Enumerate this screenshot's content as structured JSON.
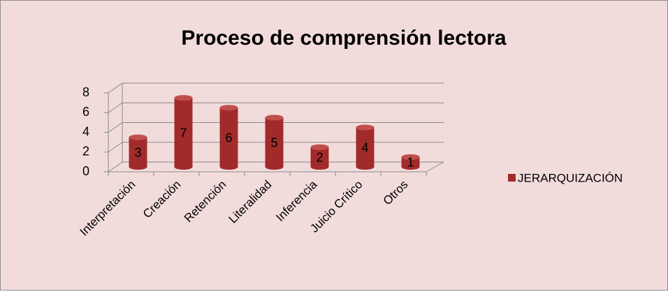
{
  "chart_data": {
    "type": "bar3d",
    "title": "Proceso de comprensión lectora",
    "categories": [
      "Interpretación",
      "Creación",
      "Retención",
      "Literalidad",
      "Inferencia",
      "Juicio Crítico",
      "Otros"
    ],
    "series": [
      {
        "name": "JERARQUIZACIÓN",
        "color": "#a12b2b",
        "values": [
          3,
          7,
          6,
          5,
          2,
          4,
          1
        ]
      }
    ],
    "ylim": [
      0,
      8
    ],
    "yticks": [
      0,
      2,
      4,
      6,
      8
    ],
    "grid": true,
    "legend": "right"
  }
}
